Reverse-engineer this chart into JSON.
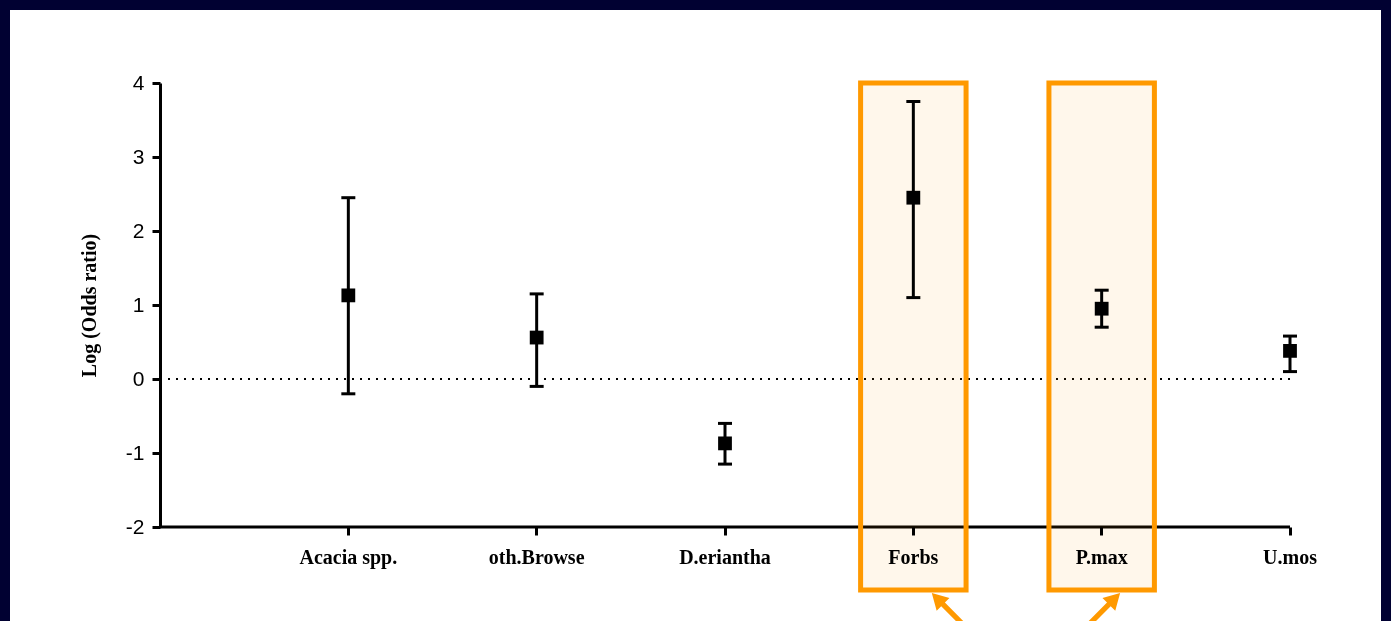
{
  "chart_data": {
    "type": "scatter",
    "ylabel": "Log (Odds ratio)",
    "categories": [
      "Acacia spp.",
      "oth.Browse",
      "D.eriantha",
      "Forbs",
      "P.max",
      "U.mos"
    ],
    "values": [
      1.13,
      0.56,
      -0.87,
      2.45,
      0.95,
      0.38
    ],
    "errors": [
      [
        -0.2,
        2.45
      ],
      [
        -0.1,
        1.15
      ],
      [
        -1.15,
        -0.6
      ],
      [
        1.1,
        3.75
      ],
      [
        0.7,
        1.2
      ],
      [
        0.1,
        0.58
      ]
    ],
    "color": "#000000",
    "marker": "square",
    "grid": false,
    "ylim": [
      -2,
      4
    ],
    "yticks": [
      -2,
      -1,
      0,
      1,
      2,
      3,
      4
    ],
    "ref_lines": [
      {
        "axis": "y",
        "value": 0,
        "line_style": "dotted",
        "color": "#000000"
      }
    ],
    "bands": [
      {
        "axis": "x",
        "from": "Forbs",
        "to": "Forbs",
        "color": "#ff9900"
      },
      {
        "axis": "x",
        "from": "P.max",
        "to": "P.max",
        "color": "#ff9900"
      }
    ]
  }
}
